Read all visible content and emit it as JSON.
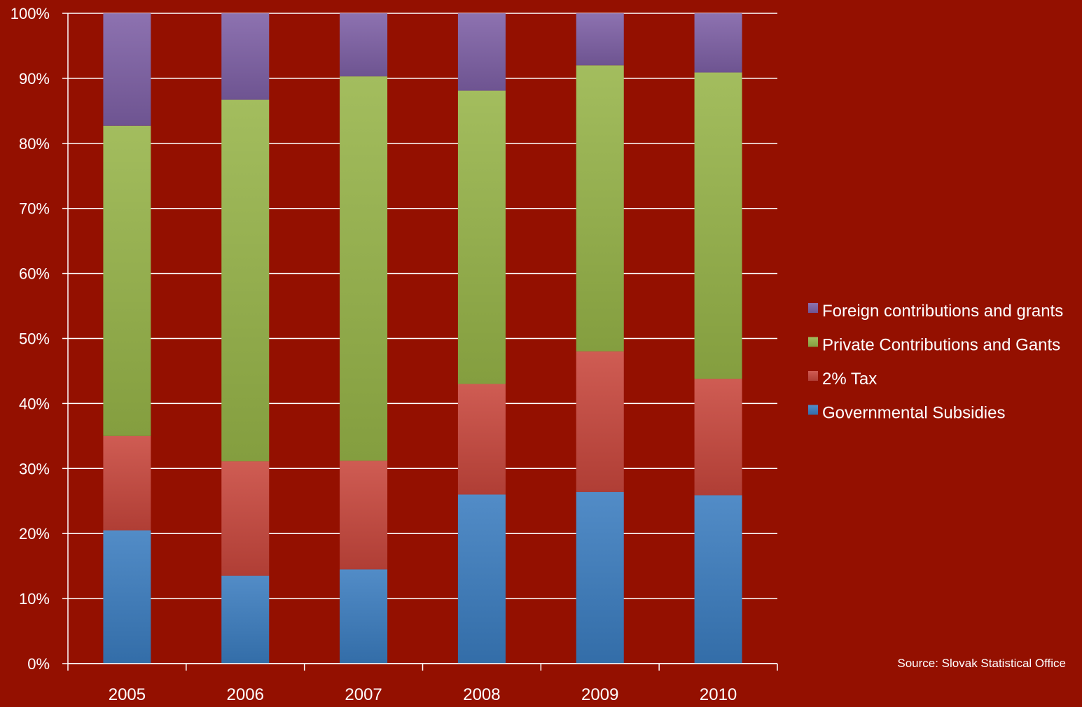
{
  "chart_data": {
    "type": "bar",
    "stacked": true,
    "percent": true,
    "categories": [
      "2005",
      "2006",
      "2007",
      "2008",
      "2009",
      "2010"
    ],
    "series": [
      {
        "name": "Governmental Subsidies",
        "color": "#3a7cbf",
        "values": [
          20.5,
          13.5,
          14.5,
          26.0,
          26.4,
          25.9
        ]
      },
      {
        "name": "2% Tax",
        "color": "#c8463c",
        "values": [
          14.5,
          17.6,
          16.7,
          17.0,
          21.6,
          17.9
        ]
      },
      {
        "name": "Private Contributions and Gants",
        "color": "#96b448",
        "values": [
          47.7,
          55.6,
          59.1,
          45.1,
          44.0,
          47.1
        ]
      },
      {
        "name": "Foreign contributions and grants",
        "color": "#7d5fa5",
        "values": [
          17.3,
          13.3,
          9.7,
          11.9,
          8.0,
          9.1
        ]
      }
    ],
    "legend_order": [
      "Foreign contributions and grants",
      "Private Contributions and Gants",
      "2% Tax",
      "Governmental Subsidies"
    ],
    "yticks": [
      "0%",
      "10%",
      "20%",
      "30%",
      "40%",
      "50%",
      "60%",
      "70%",
      "80%",
      "90%",
      "100%"
    ],
    "ylim": [
      0,
      100
    ],
    "grid": true,
    "legend_position": "right",
    "title": "",
    "xlabel": "",
    "ylabel": "",
    "source": "Source:  Slovak Statistical Office"
  },
  "colors": {
    "background": "#941000",
    "gridline": "#ffffff",
    "text": "#ffffff"
  }
}
